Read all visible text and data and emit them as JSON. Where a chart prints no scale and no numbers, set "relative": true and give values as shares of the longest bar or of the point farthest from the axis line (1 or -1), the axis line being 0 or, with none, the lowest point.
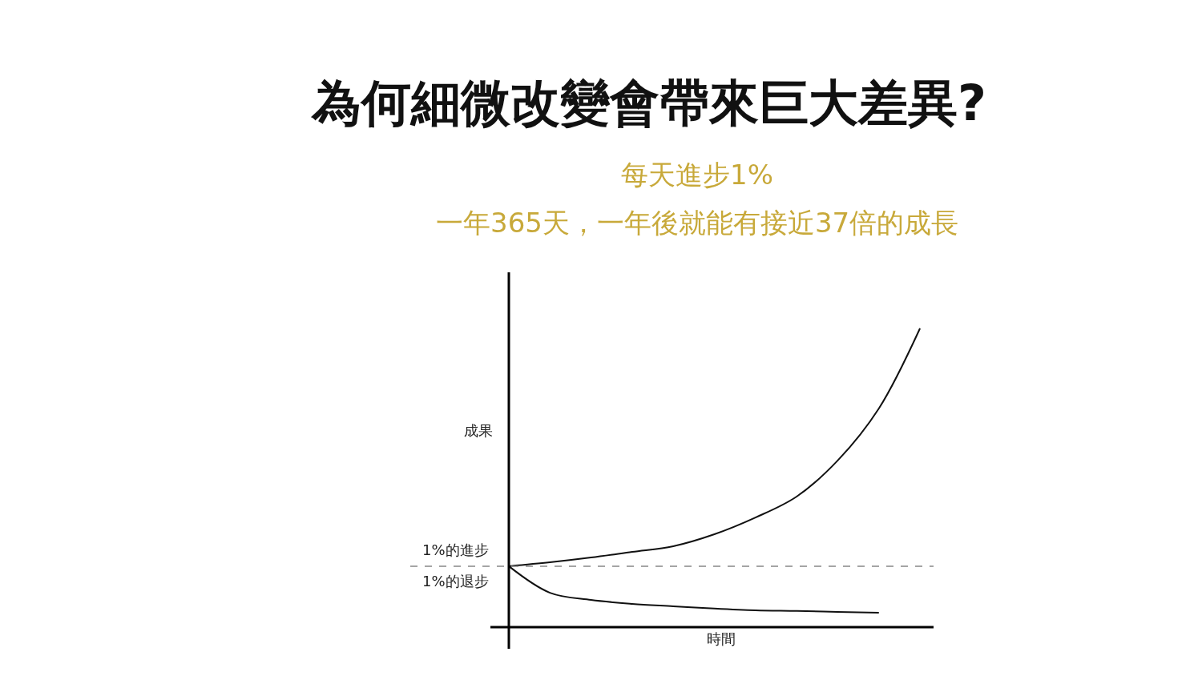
{
  "chart_data": {
    "type": "line",
    "title": "為何細微改變會帶來巨大差異?",
    "subtitle": "每天進步1%\n一年365天，一年後就能有接近37倍的成長",
    "xlabel": "時間",
    "ylabel": "成果",
    "relative": true,
    "categories": [
      null,
      null,
      null,
      null,
      null,
      null,
      null,
      null,
      null,
      null,
      null
    ],
    "series": [
      {
        "name": "1%的進步",
        "color": "#111111",
        "values": [
          0.204,
          0.217,
          0.233,
          0.252,
          0.271,
          0.311,
          0.367,
          0.437,
          0.558,
          0.732,
          1
        ]
      },
      {
        "name": "1%的退步",
        "color": "#111111",
        "values": [
          0.204,
          0.115,
          0.091,
          0.078,
          0.07,
          0.062,
          0.056,
          0.054,
          0.051,
          0.048,
          null
        ]
      }
    ],
    "ref_lines": [
      {
        "axis": "y",
        "value": 0.204,
        "color": "#888888",
        "line_style": "dashed"
      }
    ],
    "marker": "none",
    "line_style": "solid",
    "legend": false
  }
}
